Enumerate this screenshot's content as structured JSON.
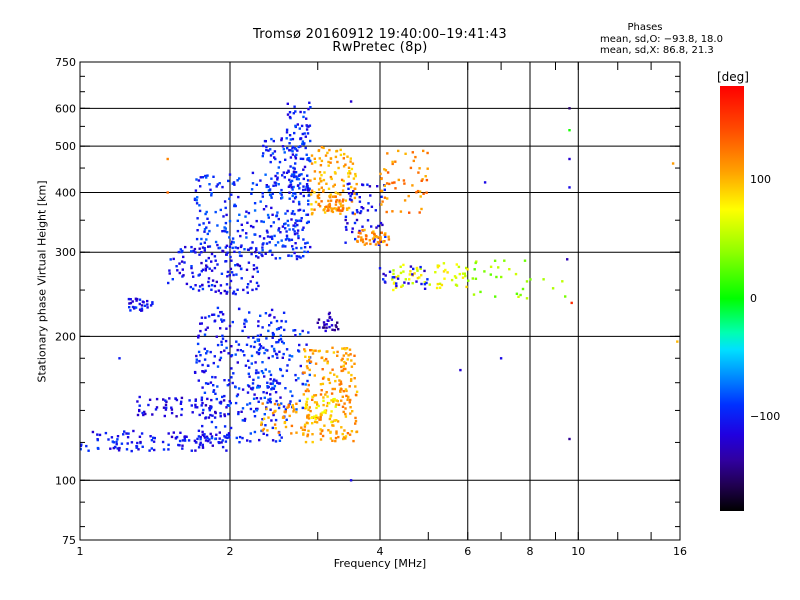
{
  "header": {
    "title_line1": "Tromsø 20160912 19:40:00–19:41:43",
    "title_line2": "RwPretec (8p)",
    "phase_heading": "Phases",
    "phase_o": "mean, sd,O: −93.8, 18.0",
    "phase_x": "mean, sd,X:  86.8, 21.3"
  },
  "colorbar": {
    "unit": "[deg]",
    "min": -180,
    "max": 180,
    "ticks": [
      {
        "value": 100,
        "label": "100"
      },
      {
        "value": 0,
        "label": "0"
      },
      {
        "value": -100,
        "label": "−100"
      }
    ]
  },
  "chart_data": {
    "type": "scatter",
    "xlabel": "Frequency [MHz]",
    "ylabel": "Stationary phase Virtual Height [km]",
    "x_scale": "log",
    "y_scale": "log",
    "xlim": [
      1,
      16
    ],
    "ylim": [
      75,
      750
    ],
    "grid": true,
    "x_ticks": [
      {
        "value": 1,
        "label": "1"
      },
      {
        "value": 2,
        "label": "2"
      },
      {
        "value": 4,
        "label": "4"
      },
      {
        "value": 6,
        "label": "6"
      },
      {
        "value": 8,
        "label": "8"
      },
      {
        "value": 10,
        "label": "10"
      },
      {
        "value": 16,
        "label": "16"
      }
    ],
    "x_grid": [
      2,
      4,
      6,
      8,
      10
    ],
    "x_minor": [
      3,
      5,
      7,
      9,
      12,
      14
    ],
    "y_ticks": [
      {
        "value": 75,
        "label": "75"
      },
      {
        "value": 100,
        "label": "100"
      },
      {
        "value": 200,
        "label": "200"
      },
      {
        "value": 300,
        "label": "300"
      },
      {
        "value": 400,
        "label": "400"
      },
      {
        "value": 500,
        "label": "500"
      },
      {
        "value": 600,
        "label": "600"
      },
      {
        "value": 750,
        "label": "750"
      }
    ],
    "y_grid": [
      100,
      200,
      300,
      400,
      500,
      600
    ],
    "clusters": [
      {
        "f": [
          1.0,
          2.0
        ],
        "h": [
          115,
          127
        ],
        "phase": -105,
        "n": 120
      },
      {
        "f": [
          1.3,
          2.0
        ],
        "h": [
          135,
          150
        ],
        "phase": -110,
        "n": 70
      },
      {
        "f": [
          1.7,
          2.6
        ],
        "h": [
          120,
          230
        ],
        "phase": -100,
        "n": 280
      },
      {
        "f": [
          2.2,
          2.9
        ],
        "h": [
          140,
          210
        ],
        "phase": -90,
        "n": 90
      },
      {
        "f": [
          2.3,
          2.9
        ],
        "h": [
          125,
          145
        ],
        "phase": 110,
        "n": 50
      },
      {
        "f": [
          2.8,
          3.6
        ],
        "h": [
          120,
          190
        ],
        "phase": 110,
        "n": 200
      },
      {
        "f": [
          2.8,
          3.3
        ],
        "h": [
          130,
          150
        ],
        "phase": 85,
        "n": 40
      },
      {
        "f": [
          1.5,
          2.3
        ],
        "h": [
          245,
          310
        ],
        "phase": -105,
        "n": 150
      },
      {
        "f": [
          1.7,
          2.3
        ],
        "h": [
          300,
          440
        ],
        "phase": -95,
        "n": 110
      },
      {
        "f": [
          2.3,
          2.9
        ],
        "h": [
          290,
          520
        ],
        "phase": -95,
        "n": 230
      },
      {
        "f": [
          2.6,
          2.9
        ],
        "h": [
          400,
          620
        ],
        "phase": -100,
        "n": 80
      },
      {
        "f": [
          2.9,
          3.6
        ],
        "h": [
          360,
          500
        ],
        "phase": 105,
        "n": 110
      },
      {
        "f": [
          3.0,
          3.4
        ],
        "h": [
          365,
          395
        ],
        "phase": 120,
        "n": 40
      },
      {
        "f": [
          3.4,
          4.1
        ],
        "h": [
          310,
          420
        ],
        "phase": -110,
        "n": 60
      },
      {
        "f": [
          3.6,
          4.2
        ],
        "h": [
          310,
          335
        ],
        "phase": 115,
        "n": 45
      },
      {
        "f": [
          4.0,
          5.0
        ],
        "h": [
          360,
          500
        ],
        "phase": 120,
        "n": 55
      },
      {
        "f": [
          4.2,
          6.0
        ],
        "h": [
          250,
          285
        ],
        "phase": 70,
        "n": 60
      },
      {
        "f": [
          4.0,
          5.0
        ],
        "h": [
          250,
          280
        ],
        "phase": -110,
        "n": 25
      },
      {
        "f": [
          6.0,
          9.5
        ],
        "h": [
          240,
          290
        ],
        "phase": 40,
        "n": 30
      },
      {
        "f": [
          1.25,
          1.4
        ],
        "h": [
          225,
          240
        ],
        "phase": -105,
        "n": 30
      },
      {
        "f": [
          3.0,
          3.3
        ],
        "h": [
          205,
          225
        ],
        "phase": -130,
        "n": 25
      }
    ],
    "isolated_points": [
      {
        "f": 9.6,
        "h": 540,
        "phase": 5
      },
      {
        "f": 9.6,
        "h": 600,
        "phase": -150
      },
      {
        "f": 9.6,
        "h": 470,
        "phase": -120
      },
      {
        "f": 9.6,
        "h": 410,
        "phase": -110
      },
      {
        "f": 9.6,
        "h": 122,
        "phase": -140
      },
      {
        "f": 9.5,
        "h": 290,
        "phase": -130
      },
      {
        "f": 9.7,
        "h": 235,
        "phase": 160
      },
      {
        "f": 15.5,
        "h": 460,
        "phase": 110
      },
      {
        "f": 15.8,
        "h": 195,
        "phase": 100
      },
      {
        "f": 5.8,
        "h": 170,
        "phase": -120
      },
      {
        "f": 7.0,
        "h": 180,
        "phase": -110
      },
      {
        "f": 7.5,
        "h": 270,
        "phase": 60
      },
      {
        "f": 6.5,
        "h": 420,
        "phase": -110
      },
      {
        "f": 1.5,
        "h": 470,
        "phase": 120
      },
      {
        "f": 1.5,
        "h": 400,
        "phase": 130
      },
      {
        "f": 1.2,
        "h": 180,
        "phase": -100
      },
      {
        "f": 3.5,
        "h": 620,
        "phase": -120
      },
      {
        "f": 3.5,
        "h": 100,
        "phase": -110
      }
    ]
  }
}
